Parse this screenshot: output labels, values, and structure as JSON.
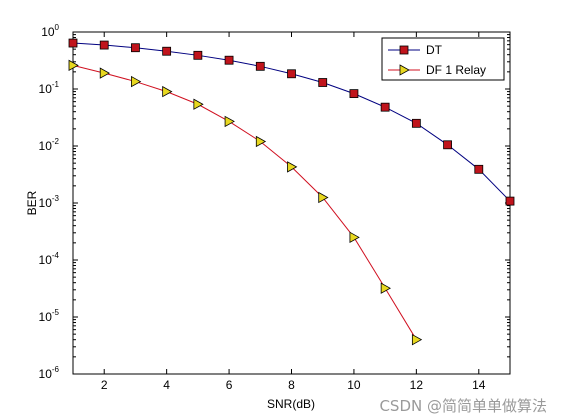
{
  "chart_data": {
    "type": "line",
    "title": "",
    "xlabel": "SNR(dB)",
    "ylabel": "BER",
    "xlim": [
      1,
      15
    ],
    "ylim": [
      1e-06,
      1
    ],
    "yscale": "log",
    "grid": false,
    "legend_position": "top-right",
    "x_ticks": [
      2,
      4,
      6,
      8,
      10,
      12,
      14
    ],
    "y_ticks": [
      {
        "base": "10",
        "exp": "0",
        "value": 1
      },
      {
        "base": "10",
        "exp": "-1",
        "value": 0.1
      },
      {
        "base": "10",
        "exp": "-2",
        "value": 0.01
      },
      {
        "base": "10",
        "exp": "-3",
        "value": 0.001
      },
      {
        "base": "10",
        "exp": "-4",
        "value": 0.0001
      },
      {
        "base": "10",
        "exp": "-5",
        "value": 1e-05
      },
      {
        "base": "10",
        "exp": "-6",
        "value": 1e-06
      }
    ],
    "series": [
      {
        "name": "DT",
        "line_color": "#000080",
        "marker": "square",
        "marker_color": "#c0141c",
        "x": [
          1,
          2,
          3,
          4,
          5,
          6,
          7,
          8,
          9,
          10,
          11,
          12,
          13,
          14,
          15
        ],
        "y": [
          0.64,
          0.59,
          0.53,
          0.46,
          0.39,
          0.32,
          0.25,
          0.185,
          0.13,
          0.083,
          0.048,
          0.025,
          0.0105,
          0.0039,
          0.00108
        ]
      },
      {
        "name": "DF 1 Relay",
        "line_color": "#d01020",
        "marker": "triangle-right",
        "marker_color": "#e8d820",
        "x": [
          1,
          2,
          3,
          4,
          5,
          6,
          7,
          8,
          9,
          10,
          11,
          12
        ],
        "y": [
          0.26,
          0.19,
          0.135,
          0.09,
          0.054,
          0.027,
          0.012,
          0.0043,
          0.00125,
          0.00025,
          3.2e-05,
          4e-06
        ]
      }
    ]
  },
  "watermark": "CSDN @简简单单做算法"
}
